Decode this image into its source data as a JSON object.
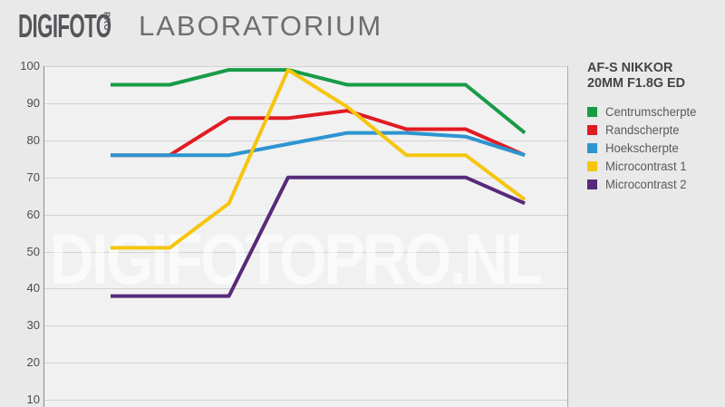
{
  "header": {
    "logo_main": "DIGIFOTO",
    "logo_sub": "PRO",
    "logo_suffix": "LABORATORIUM"
  },
  "watermark": "DIGIFOTOPRO.NL",
  "legend": {
    "title_line1": "AF-S NIKKOR",
    "title_line2": "20MM F1.8G ED",
    "items": [
      {
        "label": "Centrumscherpte",
        "color": "#189b46"
      },
      {
        "label": "Randscherpte",
        "color": "#e01b22"
      },
      {
        "label": "Hoekscherpte",
        "color": "#2d95d0"
      },
      {
        "label": "Microcontrast 1",
        "color": "#f6c50d"
      },
      {
        "label": "Microcontrast 2",
        "color": "#572a7a"
      }
    ]
  },
  "chart_data": {
    "type": "line",
    "title": "AF-S NIKKOR 20MM F1.8G ED",
    "grid": true,
    "legend_position": "right",
    "y_ticks": [
      100,
      90,
      80,
      70,
      60,
      50,
      40,
      30,
      20,
      10
    ],
    "ylim_visible": [
      10,
      100
    ],
    "x_point_count": 8,
    "x_labels_visible": false,
    "series": [
      {
        "name": "Centrumscherpte",
        "color": "#189b46",
        "values": [
          95,
          95,
          99,
          99,
          95,
          95,
          95,
          82
        ]
      },
      {
        "name": "Randscherpte",
        "color": "#e01b22",
        "values": [
          76,
          76,
          86,
          86,
          88,
          83,
          83,
          76
        ]
      },
      {
        "name": "Hoekscherpte",
        "color": "#2d95d0",
        "values": [
          76,
          76,
          76,
          79,
          82,
          82,
          81,
          76
        ]
      },
      {
        "name": "Microcontrast 1",
        "color": "#f6c50d",
        "values": [
          51,
          51,
          63,
          99,
          89,
          76,
          76,
          64
        ]
      },
      {
        "name": "Microcontrast 2",
        "color": "#572a7a",
        "values": [
          38,
          38,
          38,
          70,
          70,
          70,
          70,
          63
        ]
      }
    ]
  }
}
